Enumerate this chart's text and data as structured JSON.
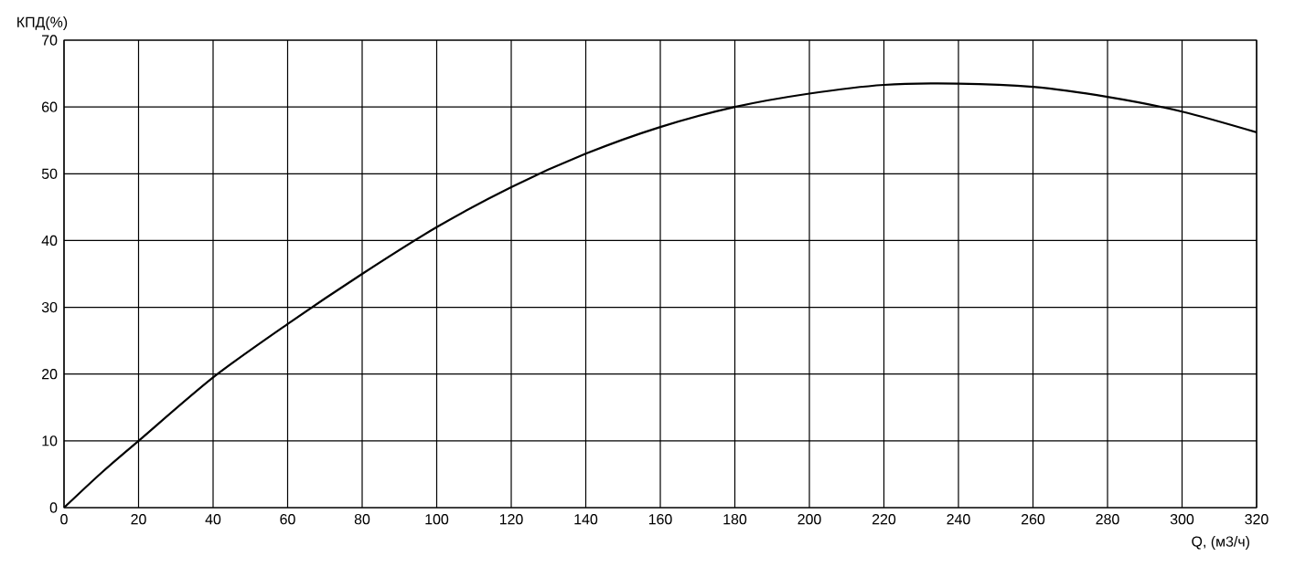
{
  "chart_data": {
    "type": "line",
    "xlabel": "Q, (м3/ч)",
    "ylabel": "КПД(%)",
    "x": [
      0,
      10,
      20,
      40,
      60,
      80,
      100,
      120,
      140,
      160,
      180,
      200,
      220,
      240,
      260,
      280,
      300,
      320
    ],
    "series": [
      {
        "color": "#000000",
        "values": [
          0,
          5.2,
          10,
          19.5,
          27.5,
          35,
          42,
          48,
          53,
          57,
          60,
          62,
          63.3,
          63.5,
          63,
          61.5,
          59.3,
          56.2
        ]
      }
    ],
    "xlim": [
      0,
      320
    ],
    "ylim": [
      0,
      70
    ],
    "xticks": [
      0,
      20,
      40,
      60,
      80,
      100,
      120,
      140,
      160,
      180,
      200,
      220,
      240,
      260,
      280,
      300,
      320
    ],
    "yticks": [
      0,
      10,
      20,
      30,
      40,
      50,
      60,
      70
    ],
    "grid": true,
    "marker": "none",
    "line_style": "solid"
  }
}
